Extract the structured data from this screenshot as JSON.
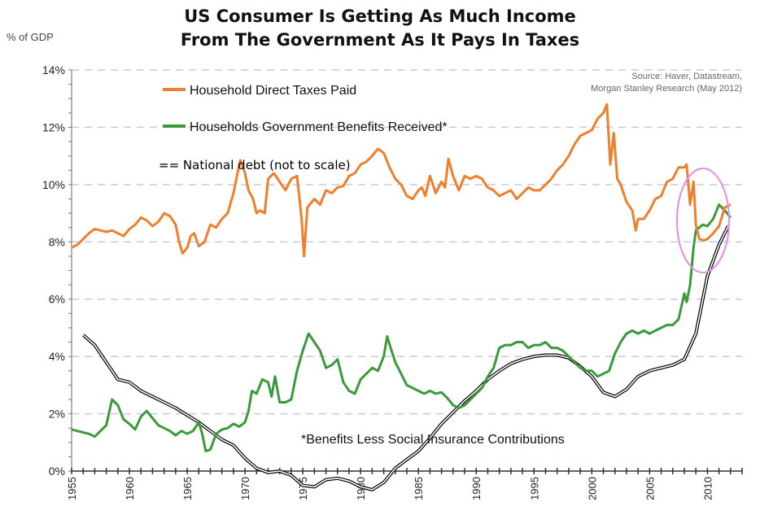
{
  "chart_data": {
    "type": "line",
    "title": "US Consumer Is Getting As Much Income",
    "subtitle": "From The Government As It Pays In Taxes",
    "ylabel": "% of GDP",
    "xlabel": "",
    "source_line1": "Source: Haver, Datastream,",
    "source_line2": "Morgan Stanley Research (May 2012)",
    "footnote": "*Benefits Less Social Insurance Contributions",
    "debt_legend": "== National debt (not to scale)",
    "xlim": [
      1955,
      2013
    ],
    "ylim": [
      0,
      14
    ],
    "yticks": [
      "0%",
      "2%",
      "4%",
      "6%",
      "8%",
      "10%",
      "12%",
      "14%"
    ],
    "xticks": [
      "1955",
      "1960",
      "1965",
      "1970",
      "1975",
      "1980",
      "1985",
      "1990",
      "1995",
      "2000",
      "2005",
      "2010"
    ],
    "grid": "horizontal dashed",
    "legend_position": "top-left",
    "colors": {
      "taxes": "#f07f2b",
      "benefits": "#3a9a3a",
      "debt": "#000000",
      "highlight": "#e88ae8",
      "grid": "#c8c8e0"
    },
    "series": [
      {
        "name": "Household Direct Taxes Paid",
        "x": [
          1955,
          1955.5,
          1956,
          1956.5,
          1957,
          1957.5,
          1958,
          1958.5,
          1959,
          1959.5,
          1960,
          1960.5,
          1961,
          1961.5,
          1962,
          1962.5,
          1963,
          1963.5,
          1964,
          1964.3,
          1964.6,
          1965,
          1965.3,
          1965.6,
          1966,
          1966.5,
          1967,
          1967.5,
          1968,
          1968.5,
          1969,
          1969.3,
          1969.6,
          1970,
          1970.3,
          1970.7,
          1971,
          1971.3,
          1971.7,
          1972,
          1972.5,
          1973,
          1973.5,
          1974,
          1974.5,
          1974.9,
          1975.1,
          1975.4,
          1976,
          1976.5,
          1977,
          1977.5,
          1978,
          1978.5,
          1979,
          1979.5,
          1980,
          1980.5,
          1981,
          1981.5,
          1982,
          1982.5,
          1983,
          1983.5,
          1984,
          1984.5,
          1985,
          1985.3,
          1985.6,
          1986,
          1986.5,
          1987,
          1987.3,
          1987.6,
          1988,
          1988.5,
          1989,
          1989.5,
          1990,
          1990.5,
          1991,
          1991.5,
          1992,
          1992.5,
          1993,
          1993.5,
          1994,
          1994.5,
          1995,
          1995.5,
          1996,
          1996.5,
          1997,
          1997.5,
          1998,
          1998.5,
          1999,
          1999.5,
          2000,
          2000.5,
          2001,
          2001.3,
          2001.6,
          2001.9,
          2002.2,
          2002.5,
          2003,
          2003.5,
          2003.8,
          2004,
          2004.5,
          2005,
          2005.5,
          2006,
          2006.5,
          2007,
          2007.5,
          2008,
          2008.2,
          2008.5,
          2008.8,
          2009,
          2009.3,
          2009.7,
          2010,
          2010.5,
          2011,
          2011.5,
          2012
        ],
        "values": [
          7.8,
          7.9,
          8.1,
          8.3,
          8.45,
          8.4,
          8.35,
          8.4,
          8.3,
          8.2,
          8.45,
          8.6,
          8.85,
          8.75,
          8.55,
          8.7,
          9.0,
          8.9,
          8.6,
          8.0,
          7.6,
          7.8,
          8.2,
          8.3,
          7.85,
          8.0,
          8.6,
          8.5,
          8.8,
          9.0,
          9.7,
          10.3,
          10.85,
          10.4,
          9.8,
          9.5,
          9.0,
          9.1,
          9.0,
          10.2,
          10.4,
          10.1,
          9.8,
          10.2,
          10.3,
          8.8,
          7.5,
          9.2,
          9.5,
          9.3,
          9.8,
          9.7,
          9.9,
          9.95,
          10.3,
          10.4,
          10.7,
          10.8,
          11.0,
          11.25,
          11.1,
          10.6,
          10.2,
          10.0,
          9.6,
          9.5,
          9.8,
          9.9,
          9.6,
          10.3,
          9.7,
          10.1,
          9.9,
          10.9,
          10.3,
          9.8,
          10.3,
          10.2,
          10.3,
          10.2,
          9.9,
          9.8,
          9.6,
          9.7,
          9.8,
          9.5,
          9.7,
          9.9,
          9.8,
          9.8,
          10.0,
          10.2,
          10.5,
          10.7,
          11.0,
          11.4,
          11.7,
          11.8,
          11.9,
          12.3,
          12.5,
          12.8,
          10.7,
          11.8,
          10.2,
          10.0,
          9.4,
          9.1,
          8.4,
          8.8,
          8.8,
          9.1,
          9.5,
          9.6,
          10.1,
          10.2,
          10.6,
          10.6,
          10.7,
          9.3,
          10.1,
          8.6,
          8.1,
          8.05,
          8.1,
          8.3,
          8.55,
          9.2,
          9.3
        ]
      },
      {
        "name": "Households Government Benefits Received*",
        "x": [
          1955,
          1955.5,
          1956,
          1956.5,
          1957,
          1957.5,
          1958,
          1958.5,
          1959,
          1959.5,
          1960,
          1960.5,
          1961,
          1961.5,
          1962,
          1962.5,
          1963,
          1963.5,
          1964,
          1964.5,
          1965,
          1965.5,
          1966,
          1966.3,
          1966.6,
          1967,
          1967.5,
          1968,
          1968.5,
          1969,
          1969.5,
          1970,
          1970.3,
          1970.6,
          1971,
          1971.5,
          1972,
          1972.3,
          1972.6,
          1973,
          1973.5,
          1974,
          1974.5,
          1975,
          1975.5,
          1976,
          1976.5,
          1977,
          1977.5,
          1978,
          1978.5,
          1979,
          1979.5,
          1980,
          1980.5,
          1981,
          1981.5,
          1982,
          1982.3,
          1982.6,
          1983,
          1983.5,
          1984,
          1984.5,
          1985,
          1985.5,
          1986,
          1986.5,
          1987,
          1987.5,
          1988,
          1988.5,
          1989,
          1989.5,
          1990,
          1990.5,
          1991,
          1991.5,
          1992,
          1992.5,
          1993,
          1993.5,
          1994,
          1994.5,
          1995,
          1995.5,
          1996,
          1996.5,
          1997,
          1997.5,
          1998,
          1998.5,
          1999,
          1999.5,
          2000,
          2000.5,
          2001,
          2001.5,
          2002,
          2002.5,
          2003,
          2003.5,
          2004,
          2004.5,
          2005,
          2005.5,
          2006,
          2006.5,
          2007,
          2007.5,
          2008,
          2008.2,
          2008.5,
          2008.8,
          2009,
          2009.3,
          2009.6,
          2010,
          2010.5,
          2011,
          2011.5,
          2012
        ],
        "values": [
          1.45,
          1.4,
          1.35,
          1.3,
          1.2,
          1.4,
          1.6,
          2.5,
          2.3,
          1.8,
          1.65,
          1.45,
          1.9,
          2.1,
          1.85,
          1.6,
          1.5,
          1.4,
          1.25,
          1.4,
          1.3,
          1.4,
          1.7,
          1.3,
          0.7,
          0.75,
          1.3,
          1.45,
          1.5,
          1.65,
          1.55,
          1.7,
          2.1,
          2.8,
          2.7,
          3.2,
          3.1,
          2.6,
          3.3,
          2.4,
          2.4,
          2.5,
          3.5,
          4.2,
          4.8,
          4.5,
          4.2,
          3.6,
          3.7,
          3.9,
          3.1,
          2.8,
          2.7,
          3.2,
          3.4,
          3.6,
          3.5,
          4.0,
          4.7,
          4.3,
          3.8,
          3.4,
          3.0,
          2.9,
          2.8,
          2.7,
          2.8,
          2.7,
          2.75,
          2.55,
          2.3,
          2.2,
          2.3,
          2.5,
          2.7,
          2.9,
          3.3,
          3.6,
          4.3,
          4.4,
          4.4,
          4.5,
          4.5,
          4.3,
          4.4,
          4.4,
          4.5,
          4.3,
          4.3,
          4.2,
          4.0,
          3.8,
          3.6,
          3.5,
          3.5,
          3.3,
          3.4,
          3.5,
          4.1,
          4.5,
          4.8,
          4.9,
          4.8,
          4.9,
          4.8,
          4.9,
          5.0,
          5.1,
          5.1,
          5.3,
          6.2,
          5.9,
          6.5,
          7.8,
          8.4,
          8.5,
          8.6,
          8.55,
          8.8,
          9.3,
          9.1,
          8.85
        ]
      },
      {
        "name": "National debt (not to scale)",
        "x": [
          1956,
          1957,
          1958,
          1959,
          1960,
          1961,
          1962,
          1963,
          1964,
          1965,
          1966,
          1967,
          1968,
          1969,
          1970,
          1971,
          1972,
          1973,
          1974,
          1975,
          1976,
          1977,
          1978,
          1979,
          1980,
          1981,
          1982,
          1983,
          1984,
          1985,
          1986,
          1987,
          1988,
          1989,
          1990,
          1991,
          1992,
          1993,
          1994,
          1995,
          1996,
          1997,
          1998,
          1999,
          2000,
          2001,
          2002,
          2003,
          2004,
          2005,
          2006,
          2007,
          2008,
          2009,
          2010,
          2011,
          2011.8
        ],
        "values": [
          4.75,
          4.4,
          3.8,
          3.2,
          3.1,
          2.8,
          2.6,
          2.4,
          2.2,
          1.95,
          1.7,
          1.4,
          1.1,
          0.9,
          0.45,
          0.1,
          -0.05,
          0.0,
          -0.15,
          -0.5,
          -0.55,
          -0.3,
          -0.25,
          -0.35,
          -0.55,
          -0.65,
          -0.4,
          0.1,
          0.4,
          0.7,
          1.15,
          1.65,
          2.05,
          2.45,
          2.8,
          3.2,
          3.5,
          3.75,
          3.9,
          4.0,
          4.05,
          4.05,
          3.95,
          3.65,
          3.3,
          2.75,
          2.6,
          2.85,
          3.3,
          3.5,
          3.6,
          3.7,
          3.9,
          4.8,
          6.8,
          7.9,
          8.55
        ]
      }
    ]
  }
}
